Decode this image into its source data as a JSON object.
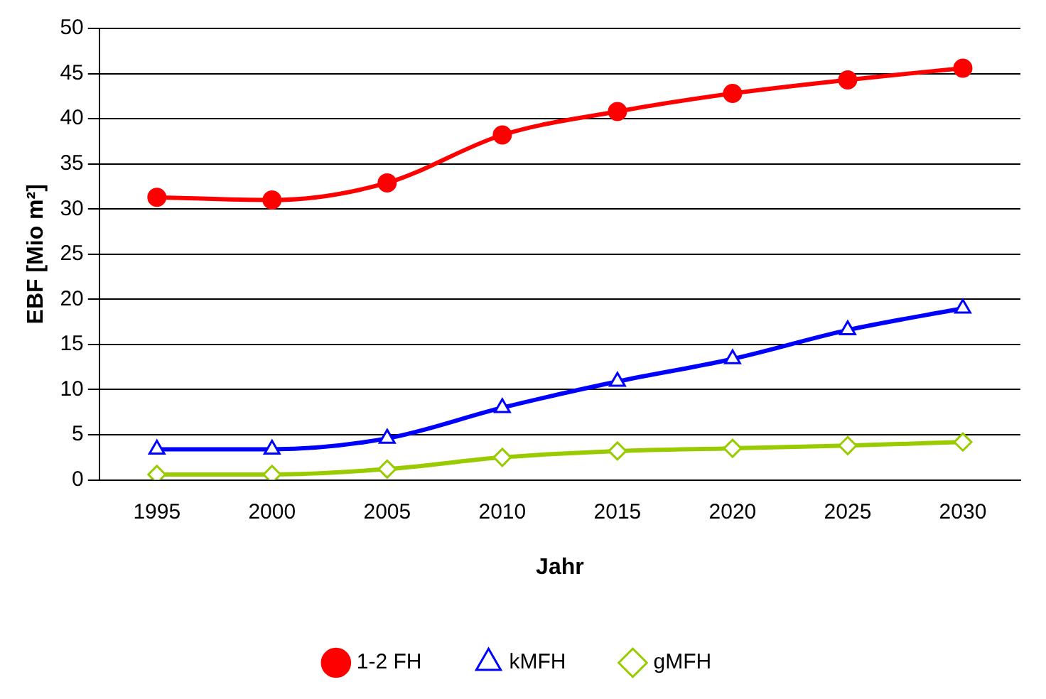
{
  "chart_data": {
    "type": "line",
    "xlabel": "Jahr",
    "ylabel": "EBF [Mio m²]",
    "categories": [
      "1995",
      "2000",
      "2005",
      "2010",
      "2015",
      "2020",
      "2025",
      "2030"
    ],
    "ylim": [
      0,
      50
    ],
    "yticks": [
      0,
      5,
      10,
      15,
      20,
      25,
      30,
      35,
      40,
      45,
      50
    ],
    "grid": "y",
    "legend": "bottom",
    "series": [
      {
        "name": "1-2 FH",
        "color": "#ff0000",
        "marker": "circle",
        "values": [
          31.3,
          31.0,
          32.9,
          38.2,
          40.8,
          42.8,
          44.3,
          45.6
        ]
      },
      {
        "name": "kMFH",
        "color": "#0000ff",
        "marker": "triangle",
        "values": [
          3.4,
          3.4,
          4.6,
          8.0,
          10.9,
          13.4,
          16.6,
          19.0
        ]
      },
      {
        "name": "gMFH",
        "color": "#99cc00",
        "marker": "diamond",
        "values": [
          0.6,
          0.6,
          1.2,
          2.5,
          3.2,
          3.5,
          3.8,
          4.2
        ]
      }
    ]
  }
}
